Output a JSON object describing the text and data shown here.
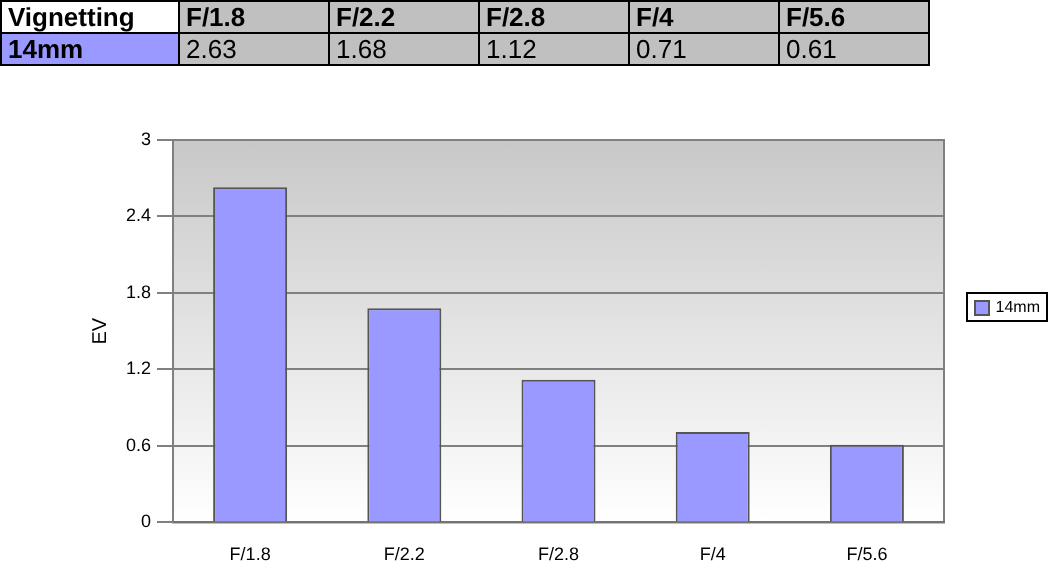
{
  "chart_data": {
    "type": "bar",
    "title": "Vignetting",
    "ylabel": "EV",
    "categories": [
      "F/1.8",
      "F/2.2",
      "F/2.8",
      "F/4",
      "F/5.6"
    ],
    "series": [
      {
        "name": "14mm",
        "color": "#9999ff",
        "values": [
          2.63,
          1.68,
          1.12,
          0.71,
          0.61
        ]
      }
    ],
    "ylim": [
      0,
      3
    ],
    "yticks": [
      0,
      0.6,
      1.2,
      1.8,
      2.4,
      3
    ],
    "grid": "y",
    "legend": "right",
    "data_labels": true
  }
}
